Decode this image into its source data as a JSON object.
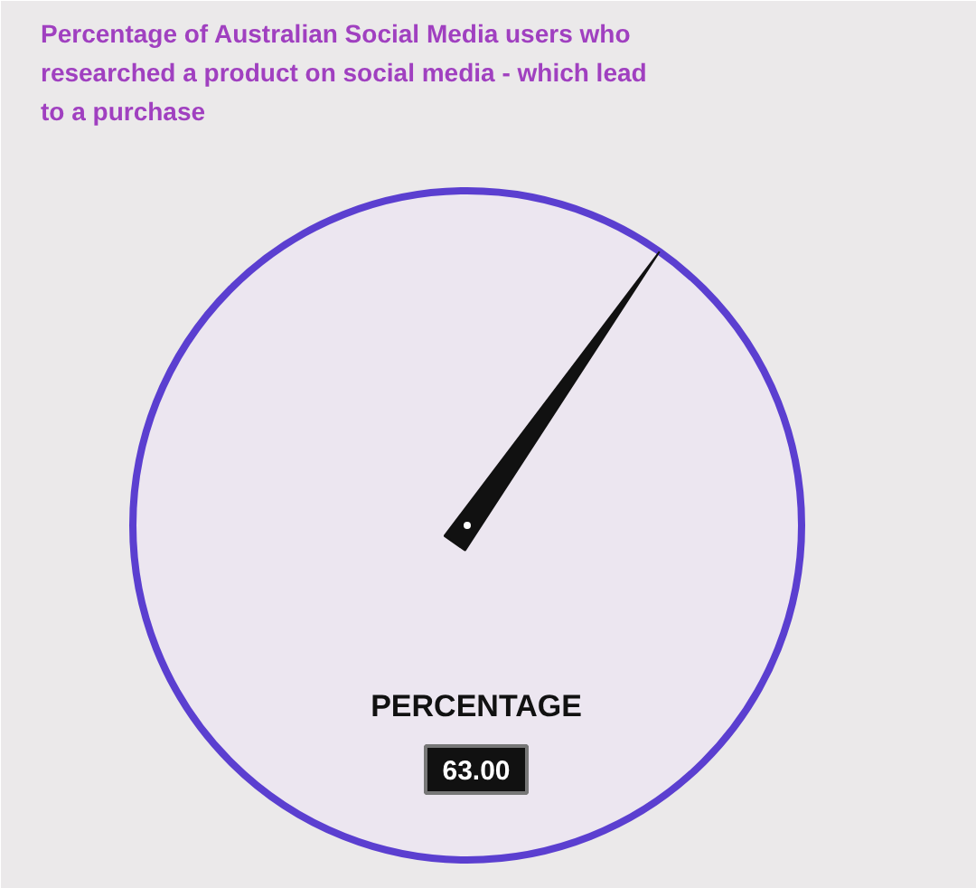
{
  "chart_data": {
    "type": "other",
    "title": "Percentage of Australian Social Media users who researched a product on social media - which lead to a purchase",
    "categories": [
      "PERCENTAGE"
    ],
    "values": [
      63.0
    ],
    "value_labels": [
      "63.00"
    ]
  }
}
